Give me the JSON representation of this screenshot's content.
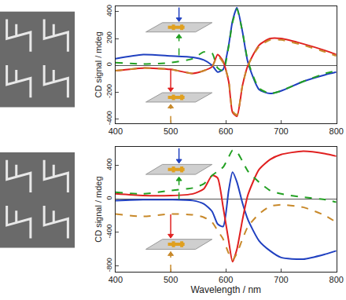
{
  "chart_data": [
    {
      "type": "line",
      "y_label": "CD signal / mdeg",
      "xlim": [
        400,
        800
      ],
      "xticks": [
        400,
        500,
        600,
        700,
        800
      ],
      "ylim": [
        -430,
        440
      ],
      "yticks": [
        -400,
        -200,
        0,
        200,
        400
      ],
      "x": [
        400,
        450,
        500,
        540,
        560,
        575,
        585,
        595,
        605,
        612,
        620,
        630,
        640,
        660,
        680,
        700,
        740,
        780,
        800
      ],
      "series": [
        {
          "color": "#2040c0",
          "line_style": "solid",
          "values": [
            50,
            80,
            70,
            60,
            40,
            0,
            -50,
            -30,
            150,
            330,
            430,
            250,
            20,
            -180,
            -210,
            -190,
            -120,
            -70,
            -50
          ]
        },
        {
          "color": "#22a022",
          "line_style": "dashed",
          "values": [
            20,
            10,
            20,
            50,
            100,
            90,
            -20,
            -40,
            140,
            320,
            420,
            250,
            30,
            -170,
            -210,
            -190,
            -120,
            -60,
            -40
          ]
        },
        {
          "color": "#e02020",
          "line_style": "solid",
          "values": [
            -40,
            -20,
            -30,
            -60,
            -40,
            -10,
            80,
            30,
            -120,
            -350,
            -380,
            -150,
            0,
            150,
            200,
            200,
            160,
            110,
            80
          ]
        },
        {
          "color": "#c8892a",
          "line_style": "dashed",
          "values": [
            -40,
            -20,
            -30,
            -60,
            -40,
            -10,
            70,
            20,
            -110,
            -340,
            -370,
            -150,
            0,
            140,
            190,
            190,
            150,
            100,
            70
          ]
        }
      ]
    },
    {
      "type": "line",
      "x_label": "Wavelength / nm",
      "y_label": "CD signal / mdeg",
      "xlim": [
        400,
        800
      ],
      "xticks": [
        400,
        500,
        600,
        700,
        800
      ],
      "ylim": [
        -870,
        620
      ],
      "yticks": [
        -800,
        -400,
        0,
        400
      ],
      "x": [
        400,
        450,
        500,
        540,
        560,
        575,
        585,
        595,
        605,
        612,
        620,
        630,
        640,
        660,
        680,
        700,
        740,
        780,
        800
      ],
      "series": [
        {
          "color": "#2040c0",
          "line_style": "solid",
          "values": [
            -20,
            -10,
            -10,
            -20,
            -60,
            -150,
            -300,
            -330,
            100,
            320,
            200,
            -50,
            -250,
            -500,
            -620,
            -700,
            -720,
            -660,
            -620
          ]
        },
        {
          "color": "#e02020",
          "line_style": "solid",
          "values": [
            60,
            40,
            40,
            60,
            120,
            280,
            250,
            -100,
            -500,
            -750,
            -600,
            -250,
            50,
            350,
            470,
            530,
            570,
            540,
            510
          ]
        },
        {
          "color": "#22a022",
          "line_style": "dashed",
          "values": [
            80,
            60,
            100,
            130,
            180,
            280,
            330,
            380,
            500,
            580,
            560,
            450,
            330,
            200,
            100,
            60,
            20,
            -10,
            -40
          ]
        },
        {
          "color": "#c8892a",
          "line_style": "dashed",
          "values": [
            -180,
            -210,
            -180,
            -190,
            -220,
            -280,
            -380,
            -480,
            -650,
            -730,
            -650,
            -480,
            -330,
            -180,
            -90,
            -70,
            -100,
            -200,
            -280
          ]
        }
      ]
    }
  ]
}
